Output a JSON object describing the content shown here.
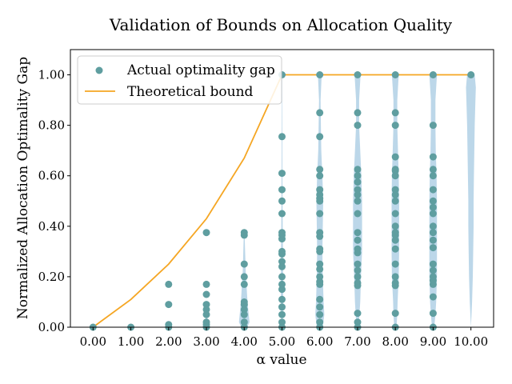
{
  "chart_data": {
    "type": "scatter",
    "title": "Validation of Bounds on Allocation Quality",
    "xlabel": "α value",
    "ylabel": "Normalized Allocation Optimality Gap",
    "xlim": [
      -0.6,
      10.6
    ],
    "ylim": [
      0,
      1.1
    ],
    "x_ticks": [
      "0.00",
      "1.00",
      "2.00",
      "3.00",
      "4.00",
      "5.00",
      "6.00",
      "7.00",
      "8.00",
      "9.00",
      "10.00"
    ],
    "y_ticks": [
      "0.00",
      "0.20",
      "0.40",
      "0.60",
      "0.80",
      "1.00"
    ],
    "grid": false,
    "legend": {
      "position": "top-left",
      "entries": [
        "Actual optimality gap",
        "Theoretical bound"
      ]
    },
    "colors": {
      "points": "#5f9ea0",
      "bound": "#f5a623",
      "violin": "#b5d3e7"
    },
    "series": [
      {
        "name": "Actual optimality gap",
        "type": "scatter",
        "points": [
          [
            0,
            0.0
          ],
          [
            1,
            0.0
          ],
          [
            2,
            0.0
          ],
          [
            2,
            0.01
          ],
          [
            2,
            0.09
          ],
          [
            2,
            0.17
          ],
          [
            3,
            0.0
          ],
          [
            3,
            0.01
          ],
          [
            3,
            0.02
          ],
          [
            3,
            0.05
          ],
          [
            3,
            0.07
          ],
          [
            3,
            0.09
          ],
          [
            3,
            0.13
          ],
          [
            3,
            0.17
          ],
          [
            3,
            0.375
          ],
          [
            4,
            0.0
          ],
          [
            4,
            0.02
          ],
          [
            4,
            0.05
          ],
          [
            4,
            0.07
          ],
          [
            4,
            0.09
          ],
          [
            4,
            0.1
          ],
          [
            4,
            0.17
          ],
          [
            4,
            0.2
          ],
          [
            4,
            0.25
          ],
          [
            4,
            0.365
          ],
          [
            4,
            0.375
          ],
          [
            5,
            0.0
          ],
          [
            5,
            0.02
          ],
          [
            5,
            0.05
          ],
          [
            5,
            0.08
          ],
          [
            5,
            0.11
          ],
          [
            5,
            0.15
          ],
          [
            5,
            0.17
          ],
          [
            5,
            0.2
          ],
          [
            5,
            0.24
          ],
          [
            5,
            0.26
          ],
          [
            5,
            0.29
          ],
          [
            5,
            0.3
          ],
          [
            5,
            0.35
          ],
          [
            5,
            0.365
          ],
          [
            5,
            0.375
          ],
          [
            5,
            0.45
          ],
          [
            5,
            0.5
          ],
          [
            5,
            0.545
          ],
          [
            5,
            0.61
          ],
          [
            5,
            0.755
          ],
          [
            5,
            1.0
          ],
          [
            6,
            0.0
          ],
          [
            6,
            0.02
          ],
          [
            6,
            0.05
          ],
          [
            6,
            0.08
          ],
          [
            6,
            0.11
          ],
          [
            6,
            0.17
          ],
          [
            6,
            0.18
          ],
          [
            6,
            0.2
          ],
          [
            6,
            0.23
          ],
          [
            6,
            0.25
          ],
          [
            6,
            0.3
          ],
          [
            6,
            0.31
          ],
          [
            6,
            0.36
          ],
          [
            6,
            0.375
          ],
          [
            6,
            0.45
          ],
          [
            6,
            0.5
          ],
          [
            6,
            0.51
          ],
          [
            6,
            0.525
          ],
          [
            6,
            0.545
          ],
          [
            6,
            0.6
          ],
          [
            6,
            0.625
          ],
          [
            6,
            0.755
          ],
          [
            6,
            0.85
          ],
          [
            6,
            1.0
          ],
          [
            7,
            0.0
          ],
          [
            7,
            0.02
          ],
          [
            7,
            0.055
          ],
          [
            7,
            0.165
          ],
          [
            7,
            0.175
          ],
          [
            7,
            0.2
          ],
          [
            7,
            0.225
          ],
          [
            7,
            0.25
          ],
          [
            7,
            0.295
          ],
          [
            7,
            0.31
          ],
          [
            7,
            0.345
          ],
          [
            7,
            0.375
          ],
          [
            7,
            0.45
          ],
          [
            7,
            0.5
          ],
          [
            7,
            0.525
          ],
          [
            7,
            0.545
          ],
          [
            7,
            0.575
          ],
          [
            7,
            0.6
          ],
          [
            7,
            0.625
          ],
          [
            7,
            0.8
          ],
          [
            7,
            0.85
          ],
          [
            7,
            1.0
          ],
          [
            8,
            0.0
          ],
          [
            8,
            0.055
          ],
          [
            8,
            0.165
          ],
          [
            8,
            0.175
          ],
          [
            8,
            0.2
          ],
          [
            8,
            0.25
          ],
          [
            8,
            0.31
          ],
          [
            8,
            0.345
          ],
          [
            8,
            0.365
          ],
          [
            8,
            0.375
          ],
          [
            8,
            0.4
          ],
          [
            8,
            0.45
          ],
          [
            8,
            0.5
          ],
          [
            8,
            0.525
          ],
          [
            8,
            0.545
          ],
          [
            8,
            0.6
          ],
          [
            8,
            0.62
          ],
          [
            8,
            0.625
          ],
          [
            8,
            0.675
          ],
          [
            8,
            0.8
          ],
          [
            8,
            0.85
          ],
          [
            8,
            1.0
          ],
          [
            9,
            0.0
          ],
          [
            9,
            0.055
          ],
          [
            9,
            0.12
          ],
          [
            9,
            0.17
          ],
          [
            9,
            0.185
          ],
          [
            9,
            0.2
          ],
          [
            9,
            0.225
          ],
          [
            9,
            0.25
          ],
          [
            9,
            0.315
          ],
          [
            9,
            0.345
          ],
          [
            9,
            0.375
          ],
          [
            9,
            0.4
          ],
          [
            9,
            0.45
          ],
          [
            9,
            0.475
          ],
          [
            9,
            0.5
          ],
          [
            9,
            0.545
          ],
          [
            9,
            0.6
          ],
          [
            9,
            0.625
          ],
          [
            9,
            0.675
          ],
          [
            9,
            0.8
          ],
          [
            9,
            1.0
          ],
          [
            10,
            1.0
          ]
        ]
      },
      {
        "name": "Theoretical bound",
        "type": "line",
        "x": [
          0,
          1,
          2,
          3,
          4,
          5,
          6,
          7,
          8,
          9,
          10
        ],
        "y": [
          0.0,
          0.11,
          0.25,
          0.43,
          0.67,
          1.0,
          1.0,
          1.0,
          1.0,
          1.0,
          1.0
        ]
      }
    ],
    "distributions": [
      {
        "x": 3,
        "y": [
          0.0,
          0.02,
          0.04,
          0.06,
          0.08,
          0.1
        ],
        "width": [
          0.01,
          0.03,
          0.02,
          0.015,
          0.01,
          0.005
        ]
      },
      {
        "x": 4,
        "y": [
          0.0,
          0.02,
          0.05,
          0.08,
          0.12,
          0.17,
          0.22,
          0.27,
          0.32,
          0.375
        ],
        "width": [
          0.08,
          0.14,
          0.12,
          0.1,
          0.08,
          0.06,
          0.04,
          0.03,
          0.02,
          0.01
        ]
      },
      {
        "x": 5,
        "y": [
          0.0,
          0.05,
          0.1,
          0.15,
          0.2,
          0.3,
          0.4,
          0.5,
          0.6,
          0.75,
          0.9,
          1.0
        ],
        "width": [
          0.01,
          0.02,
          0.03,
          0.03,
          0.03,
          0.025,
          0.02,
          0.015,
          0.01,
          0.008,
          0.006,
          0.005
        ]
      },
      {
        "x": 6,
        "y": [
          0.0,
          0.05,
          0.1,
          0.2,
          0.3,
          0.4,
          0.5,
          0.6,
          0.7,
          0.8,
          0.9,
          1.0
        ],
        "width": [
          0.08,
          0.12,
          0.1,
          0.08,
          0.07,
          0.08,
          0.09,
          0.07,
          0.04,
          0.03,
          0.02,
          0.05
        ]
      },
      {
        "x": 7,
        "y": [
          0.0,
          0.05,
          0.1,
          0.2,
          0.3,
          0.4,
          0.5,
          0.6,
          0.7,
          0.8,
          0.9,
          1.0
        ],
        "width": [
          0.03,
          0.05,
          0.07,
          0.09,
          0.12,
          0.12,
          0.12,
          0.1,
          0.07,
          0.04,
          0.04,
          0.08
        ]
      },
      {
        "x": 8,
        "y": [
          0.0,
          0.05,
          0.1,
          0.2,
          0.3,
          0.4,
          0.5,
          0.6,
          0.7,
          0.8,
          0.9,
          1.0
        ],
        "width": [
          0.03,
          0.05,
          0.06,
          0.09,
          0.1,
          0.1,
          0.1,
          0.09,
          0.07,
          0.05,
          0.05,
          0.09
        ]
      },
      {
        "x": 9,
        "y": [
          0.0,
          0.05,
          0.1,
          0.2,
          0.3,
          0.4,
          0.5,
          0.6,
          0.7,
          0.8,
          0.9,
          1.0
        ],
        "width": [
          0.03,
          0.06,
          0.08,
          0.1,
          0.1,
          0.1,
          0.1,
          0.09,
          0.07,
          0.06,
          0.06,
          0.1
        ]
      },
      {
        "x": 10,
        "y": [
          0.0,
          0.1,
          0.2,
          0.3,
          0.4,
          0.5,
          0.6,
          0.7,
          0.8,
          0.9,
          0.95,
          1.0
        ],
        "width": [
          0.0,
          0.03,
          0.05,
          0.06,
          0.07,
          0.07,
          0.08,
          0.09,
          0.1,
          0.12,
          0.13,
          0.1
        ]
      }
    ]
  }
}
